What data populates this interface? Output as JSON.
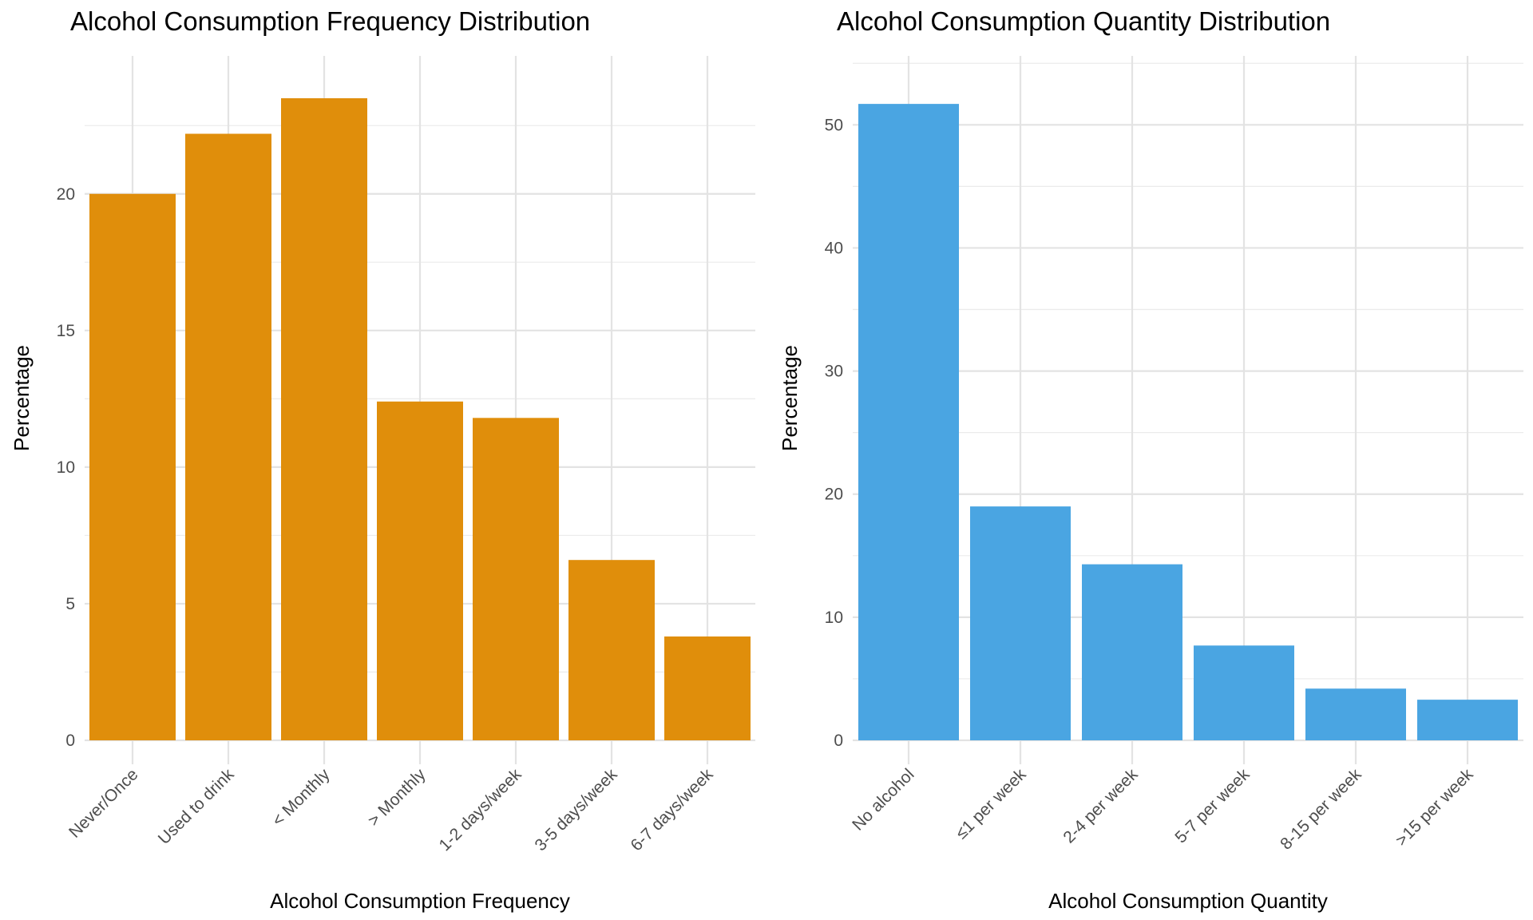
{
  "chart_data": [
    {
      "type": "bar",
      "title": "Alcohol Consumption Frequency Distribution",
      "xlabel": "Alcohol Consumption Frequency",
      "ylabel": "Percentage",
      "categories": [
        "Never/Once",
        "Used to drink",
        "< Monthly",
        "> Monthly",
        "1-2 days/week",
        "3-5 days/week",
        "6-7 days/week"
      ],
      "values": [
        20.0,
        22.2,
        23.5,
        12.4,
        11.8,
        6.6,
        3.8
      ],
      "ylim": [
        0,
        25
      ],
      "yticks": [
        0,
        5,
        10,
        15,
        20
      ],
      "color": "#E08E0B",
      "grid": true,
      "legend": "none"
    },
    {
      "type": "bar",
      "title": "Alcohol Consumption Quantity Distribution",
      "xlabel": "Alcohol Consumption Quantity",
      "ylabel": "Percentage",
      "categories": [
        "No alcohol",
        "≤1 per week",
        "2-4 per week",
        "5-7 per week",
        "8-15 per week",
        ">15 per week"
      ],
      "values": [
        51.7,
        19.0,
        14.3,
        7.7,
        4.2,
        3.3
      ],
      "ylim": [
        0,
        55
      ],
      "yticks": [
        0,
        10,
        20,
        30,
        40,
        50
      ],
      "color": "#4AA5E2",
      "grid": true,
      "legend": "none"
    }
  ]
}
